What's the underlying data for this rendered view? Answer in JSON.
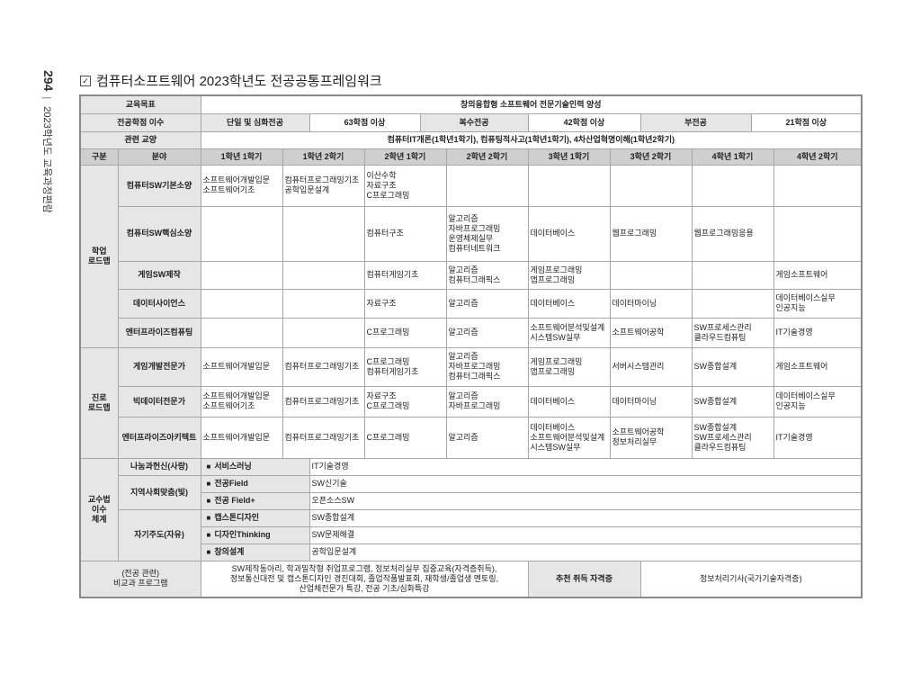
{
  "side": {
    "page": "294",
    "book": "2023학년도 교육과정편람"
  },
  "title": "컴퓨터소프트웨어 2023학년도 전공공통프레임워크",
  "goal": {
    "label": "교육목표",
    "value": "창의융합형 소프트웨어 전문기술인력 양성"
  },
  "credits": {
    "label": "전공학점 이수",
    "items": [
      {
        "k": "단일 및 심화전공",
        "v": "63학점 이상"
      },
      {
        "k": "복수전공",
        "v": "42학점 이상"
      },
      {
        "k": "부전공",
        "v": "21학점 이상"
      }
    ]
  },
  "liberal": {
    "label": "관련 교양",
    "value": "컴퓨터IT개론(1학년1학기), 컴퓨팅적사고(1학년1학기), 4차산업혁명이해(1학년2학기)"
  },
  "header": {
    "gubun": "구분",
    "field": "분야",
    "semesters": [
      "1학년 1학기",
      "1학년 2학기",
      "2학년 1학기",
      "2학년 2학기",
      "3학년 1학기",
      "3학년 2학기",
      "4학년 1학기",
      "4학년 2학기"
    ]
  },
  "roadmaps": [
    {
      "group": "학업\n로드맵",
      "rows": [
        {
          "field": "컴퓨터SW기본소양",
          "h": 46,
          "cells": [
            "소프트웨어개발입문\n소프트웨어기초",
            "컴퓨터프로그래밍기초\n공학입문설계",
            "이산수학\n자료구조\nC프로그래밍",
            "",
            "",
            "",
            "",
            ""
          ]
        },
        {
          "field": "컴퓨터SW핵심소양",
          "h": 61,
          "cells": [
            "",
            "",
            "컴퓨터구조",
            "알고리즘\n자바프로그래밍\n운영체제실무\n컴퓨터네트워크",
            "데이터베이스",
            "웹프로그래밍",
            "웹프로그래밍응용",
            ""
          ]
        },
        {
          "field": "게임SW제작",
          "h": 31,
          "cells": [
            "",
            "",
            "컴퓨터게임기초",
            "알고리즘\n컴퓨터그래픽스",
            "게임프로그래밍\n앱프로그래밍",
            "",
            "",
            "게임소프트웨어"
          ]
        },
        {
          "field": "데이터사이언스",
          "h": 32,
          "cells": [
            "",
            "",
            "자료구조",
            "알고리즘",
            "데이터베이스",
            "데이터마이닝",
            "",
            "데이터베이스실무\n인공지능"
          ]
        },
        {
          "field": "엔터프라이즈컴퓨팅",
          "h": 33,
          "cells": [
            "",
            "",
            "C프로그래밍",
            "알고리즘",
            "소프트웨어분석및설계\n시스템SW실무",
            "소프트웨어공학",
            "SW프로세스관리\n클라우드컴퓨팅",
            "IT기술경영"
          ]
        }
      ]
    },
    {
      "group": "진로\n로드맵",
      "rows": [
        {
          "field": "게임개발전문가",
          "h": 43,
          "cells": [
            "소프트웨어개발입문",
            "컴퓨터프로그래밍기초",
            "C프로그래밍\n컴퓨터게임기초",
            "알고리즘\n자바프로그래밍\n컴퓨터그래픽스",
            "게임프로그래밍\n앱프로그래밍",
            "서버시스템관리",
            "SW종합설계",
            "게임소프트웨어"
          ]
        },
        {
          "field": "빅데이터전문가",
          "h": 34,
          "cells": [
            "소프트웨어개발입문\n소프트웨어기초",
            "컴퓨터프로그래밍기초",
            "자료구조\nC프로그래밍",
            "알고리즘\n자바프로그래밍",
            "데이터베이스",
            "데이터마이닝",
            "SW종합설계",
            "데이터베이스실무\n인공지능"
          ]
        },
        {
          "field": "엔터프라이즈아키텍트",
          "h": 46,
          "cells": [
            "소프트웨어개발입문",
            "컴퓨터프로그래밍기초",
            "C프로그래밍",
            "알고리즘",
            "데이터베이스\n소프트웨어분석및설계\n시스템SW실무",
            "소프트웨어공학\n정보처리실무",
            "SW종합설계\nSW프로세스관리\n클라우드컴퓨팅",
            "IT기술경영"
          ]
        }
      ]
    }
  ],
  "teaching": {
    "label": "교수법\n이수\n체계",
    "groups": [
      {
        "name": "나눔과헌신(사랑)",
        "items": [
          {
            "k": "서비스러닝",
            "v": "IT기술경영"
          }
        ]
      },
      {
        "name": "지역사회맞춤(빛)",
        "items": [
          {
            "k": "전공Field",
            "v": "SW신기술"
          },
          {
            "k": "전공 Field+",
            "v": "오픈소스SW"
          }
        ]
      },
      {
        "name": "자기주도(자유)",
        "items": [
          {
            "k": "캡스톤디자인",
            "v": "SW종합설계"
          },
          {
            "k": "디자인Thinking",
            "v": "SW문제해결"
          },
          {
            "k": "창의설계",
            "v": "공학입문설계"
          }
        ]
      }
    ]
  },
  "extra": {
    "label": "(전공 관련)\n비교과 프로그램",
    "text": "SW제작동아리, 학과밀착형 취업프로그램, 정보처리실무 집중교육(자격증취득),\n정보통신대전 및 캡스톤디자인 경진대회, 졸업작품발표회, 재학생/졸업생 멘토링,\n산업체전문가 특강, 전공 기초/심화특강",
    "cert_label": "추천 취득 자격증",
    "cert": "정보처리기사(국가기술자격증)"
  },
  "colors": {
    "label_bg": "#e6e6e6",
    "header_bg": "#cfcfcf",
    "border": "#a8a8a8"
  }
}
